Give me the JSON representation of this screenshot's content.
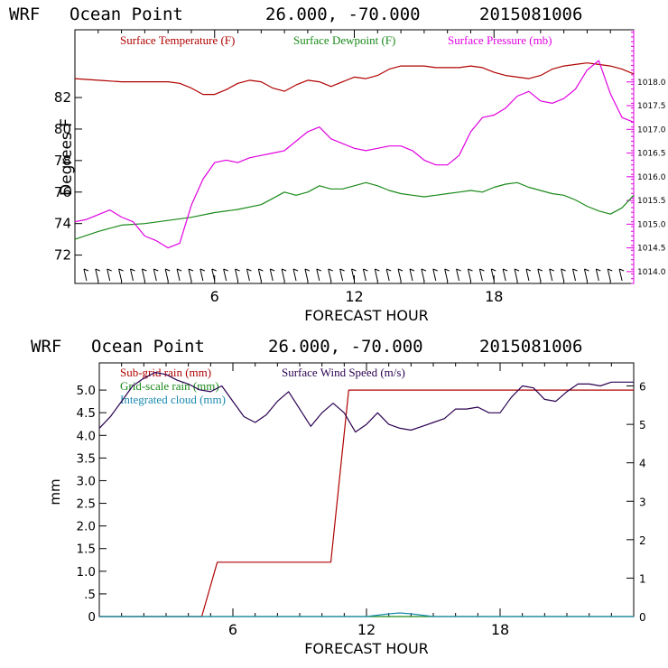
{
  "chart_data": [
    {
      "type": "line",
      "header": {
        "model": "WRF",
        "location": "Ocean Point",
        "coords": "26.000, -70.000",
        "init": "2015081006"
      },
      "title": "WRF   Ocean Point   26.000, -70.000  2015081006",
      "xlabel": "FORECAST HOUR",
      "ylabel": "Degrees F",
      "xlim": [
        0,
        24
      ],
      "ylim": [
        70.2,
        86.3
      ],
      "y2lim": [
        1013.75,
        1019.1
      ],
      "x_ticks": [
        6,
        12,
        18
      ],
      "y_ticks": [
        72,
        74,
        76,
        78,
        80,
        82
      ],
      "y2_ticks": [
        "1014.0",
        "1014.5",
        "1015.0",
        "1015.5",
        "1016.0",
        "1016.5",
        "1017.0",
        "1017.5",
        "1018.0"
      ],
      "legend": [
        {
          "label": "Surface Temperature (F)",
          "color": "#b00000"
        },
        {
          "label": "Surface Dewpoint (F)",
          "color": "#1a8a1a"
        },
        {
          "label": "Surface Pressure (mb)",
          "color": "#e000e0"
        }
      ],
      "series": [
        {
          "name": "Surface Temperature (F)",
          "axis": "left",
          "color": "#b00000",
          "x": [
            0,
            1,
            2,
            3,
            4,
            4.5,
            5,
            5.5,
            6,
            6.5,
            7,
            7.5,
            8,
            8.5,
            9,
            9.5,
            10,
            10.5,
            11,
            11.5,
            12,
            12.5,
            13,
            13.5,
            14,
            14.5,
            15,
            15.5,
            16,
            16.5,
            17,
            17.5,
            18,
            18.5,
            19,
            19.5,
            20,
            20.5,
            21,
            21.5,
            22,
            22.5,
            23,
            23.5,
            24
          ],
          "values": [
            83.2,
            83.1,
            83.0,
            83.0,
            83.0,
            82.9,
            82.6,
            82.2,
            82.2,
            82.5,
            82.9,
            83.1,
            83.0,
            82.6,
            82.4,
            82.8,
            83.1,
            83.0,
            82.7,
            83.0,
            83.3,
            83.2,
            83.4,
            83.8,
            84.0,
            84.0,
            84.0,
            83.9,
            83.9,
            83.9,
            84.0,
            83.9,
            83.6,
            83.4,
            83.3,
            83.2,
            83.4,
            83.8,
            84.0,
            84.1,
            84.2,
            84.1,
            84.0,
            83.8,
            83.5
          ]
        },
        {
          "name": "Surface Dewpoint (F)",
          "axis": "left",
          "color": "#1a8a1a",
          "x": [
            0,
            1,
            2,
            3,
            4,
            5,
            6,
            7,
            8,
            8.5,
            9,
            9.5,
            10,
            10.5,
            11,
            11.5,
            12,
            12.5,
            13,
            13.5,
            14,
            14.5,
            15,
            15.5,
            16,
            16.5,
            17,
            17.5,
            18,
            18.5,
            19,
            19.5,
            20,
            20.5,
            21,
            21.5,
            22,
            22.5,
            23,
            23.5,
            24
          ],
          "values": [
            73.0,
            73.5,
            73.9,
            74.0,
            74.2,
            74.4,
            74.7,
            74.9,
            75.2,
            75.6,
            76.0,
            75.8,
            76.0,
            76.4,
            76.2,
            76.2,
            76.4,
            76.6,
            76.4,
            76.1,
            75.9,
            75.8,
            75.7,
            75.8,
            75.9,
            76.0,
            76.1,
            76.0,
            76.3,
            76.5,
            76.6,
            76.3,
            76.1,
            75.9,
            75.8,
            75.5,
            75.1,
            74.8,
            74.6,
            75.0,
            75.8
          ]
        },
        {
          "name": "Surface Pressure (mb)",
          "axis": "right",
          "color": "#e000e0",
          "x": [
            0,
            0.5,
            1,
            1.5,
            2,
            2.5,
            3,
            3.5,
            4,
            4.5,
            5,
            5.5,
            6,
            6.5,
            7,
            7.5,
            8,
            8.5,
            9,
            9.5,
            10,
            10.5,
            11,
            11.5,
            12,
            12.5,
            13,
            13.5,
            14,
            14.5,
            15,
            15.5,
            16,
            16.5,
            17,
            17.5,
            18,
            18.5,
            19,
            19.5,
            20,
            20.5,
            21,
            21.5,
            22,
            22.5,
            23,
            23.5,
            24
          ],
          "values": [
            1015.05,
            1015.1,
            1015.2,
            1015.3,
            1015.15,
            1015.05,
            1014.75,
            1014.65,
            1014.5,
            1014.6,
            1015.4,
            1015.95,
            1016.3,
            1016.35,
            1016.3,
            1016.4,
            1016.45,
            1016.5,
            1016.55,
            1016.75,
            1016.95,
            1017.05,
            1016.8,
            1016.7,
            1016.6,
            1016.55,
            1016.6,
            1016.65,
            1016.65,
            1016.55,
            1016.35,
            1016.25,
            1016.25,
            1016.45,
            1016.95,
            1017.25,
            1017.3,
            1017.45,
            1017.7,
            1017.8,
            1017.6,
            1017.55,
            1017.65,
            1017.85,
            1018.25,
            1018.45,
            1017.75,
            1017.25,
            1017.15
          ]
        }
      ]
    },
    {
      "type": "line",
      "header": {
        "model": "WRF",
        "location": "Ocean Point",
        "coords": "26.000, -70.000",
        "init": "2015081006"
      },
      "title": "WRF   Ocean Point   26.000, -70.000  2015081006",
      "xlabel": "FORECAST HOUR",
      "ylabel": "mm",
      "xlim": [
        0,
        24
      ],
      "ylim": [
        0,
        5.6
      ],
      "y2lim": [
        0,
        6.6
      ],
      "x_ticks": [
        6,
        12,
        18
      ],
      "y_ticks": [
        "0",
        ".5",
        "1.0",
        "1.5",
        "2.0",
        "2.5",
        "3.0",
        "3.5",
        "4.0",
        "4.5",
        "5.0"
      ],
      "y2_ticks": [
        "0",
        "1",
        "2",
        "3",
        "4",
        "5",
        "6"
      ],
      "legend": [
        {
          "label": "Sub-grid rain (mm)",
          "color": "#b00000"
        },
        {
          "label": "Surface Wind Speed (m/s)",
          "color": "#2a0050"
        },
        {
          "label": "Grid-scale rain (mm)",
          "color": "#1a8a1a"
        },
        {
          "label": "Integrated cloud (mm)",
          "color": "#1a8ab0"
        }
      ],
      "series": [
        {
          "name": "Sub-grid rain (mm)",
          "axis": "left",
          "color": "#b00000",
          "x": [
            0,
            4.6,
            5.3,
            10.4,
            11.2,
            24
          ],
          "values": [
            0,
            0,
            1.2,
            1.2,
            5.0,
            5.0
          ]
        },
        {
          "name": "Surface Wind Speed (m/s)",
          "axis": "right",
          "color": "#2a0050",
          "x": [
            0,
            0.5,
            1,
            1.5,
            2,
            2.5,
            3,
            3.5,
            4,
            4.5,
            5,
            5.5,
            6,
            6.5,
            7,
            7.5,
            8,
            8.5,
            9,
            9.5,
            10,
            10.5,
            11,
            11.5,
            12,
            12.5,
            13,
            13.5,
            14,
            14.5,
            15,
            15.5,
            16,
            16.5,
            17,
            17.5,
            18,
            18.5,
            19,
            19.5,
            20,
            20.5,
            21,
            21.5,
            22,
            22.5,
            23,
            23.5,
            24
          ],
          "values": [
            4.9,
            5.2,
            5.6,
            6.0,
            6.2,
            6.35,
            6.3,
            6.15,
            6.05,
            5.9,
            5.85,
            6.0,
            5.6,
            5.2,
            5.05,
            5.25,
            5.6,
            5.85,
            5.4,
            4.95,
            5.3,
            5.55,
            5.3,
            4.8,
            5.0,
            5.3,
            5.0,
            4.9,
            4.85,
            4.95,
            5.05,
            5.15,
            5.4,
            5.4,
            5.45,
            5.3,
            5.3,
            5.7,
            6.0,
            5.95,
            5.65,
            5.6,
            5.85,
            6.05,
            6.05,
            6.0,
            6.1,
            6.1,
            6.1
          ]
        },
        {
          "name": "Grid-scale rain (mm)",
          "axis": "left",
          "color": "#1a8a1a",
          "x": [
            0,
            24
          ],
          "values": [
            0,
            0
          ]
        },
        {
          "name": "Integrated cloud (mm)",
          "axis": "left",
          "color": "#1a8ab0",
          "x": [
            0,
            12,
            12.5,
            13,
            13.5,
            14,
            14.5,
            15,
            24
          ],
          "values": [
            0,
            0,
            0.03,
            0.06,
            0.08,
            0.06,
            0.03,
            0,
            0
          ]
        }
      ]
    }
  ]
}
